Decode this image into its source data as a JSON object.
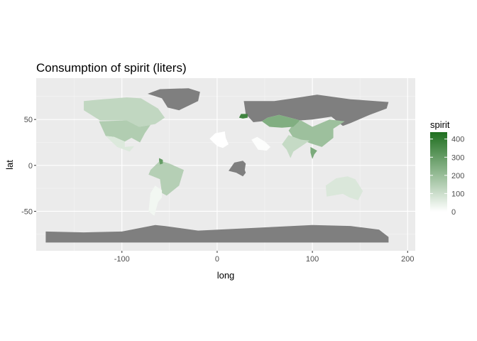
{
  "chart_data": {
    "type": "map",
    "title": "Consumption of spirit (liters)",
    "xlabel": "long",
    "ylabel": "lat",
    "x_ticks": [
      -100,
      0,
      100,
      200
    ],
    "y_ticks": [
      50,
      0,
      -50
    ],
    "xlim": [
      -190,
      208
    ],
    "ylim": [
      -93,
      95
    ],
    "grid": true,
    "legend": {
      "title": "spirit",
      "position": "right",
      "ticks": [
        400,
        300,
        200,
        100,
        0
      ],
      "range": [
        0,
        438
      ],
      "low_color": "#ffffff",
      "high_color": "#1f6f1f"
    },
    "na_color": "#7f7f7f",
    "panel_background": "#ebebeb",
    "regions": [
      {
        "name": "Greenland",
        "spirit": null
      },
      {
        "name": "Russia",
        "spirit": null
      },
      {
        "name": "Antarctica",
        "spirit": null
      },
      {
        "name": "DR Congo",
        "spirit": null
      },
      {
        "name": "Canada",
        "spirit": 122
      },
      {
        "name": "United States",
        "spirit": 152
      },
      {
        "name": "Mexico",
        "spirit": 68
      },
      {
        "name": "Brazil",
        "spirit": 145
      },
      {
        "name": "Guyana",
        "spirit": 302
      },
      {
        "name": "Argentina",
        "spirit": 25
      },
      {
        "name": "China",
        "spirit": 192
      },
      {
        "name": "Kazakhstan",
        "spirit": 246
      },
      {
        "name": "Belarus",
        "spirit": 373
      },
      {
        "name": "Thailand",
        "spirit": 258
      },
      {
        "name": "Australia",
        "spirit": 72
      },
      {
        "name": "India",
        "spirit": 114
      },
      {
        "name": "Saudi Arabia",
        "spirit": 5
      },
      {
        "name": "Algeria",
        "spirit": 0
      }
    ]
  }
}
